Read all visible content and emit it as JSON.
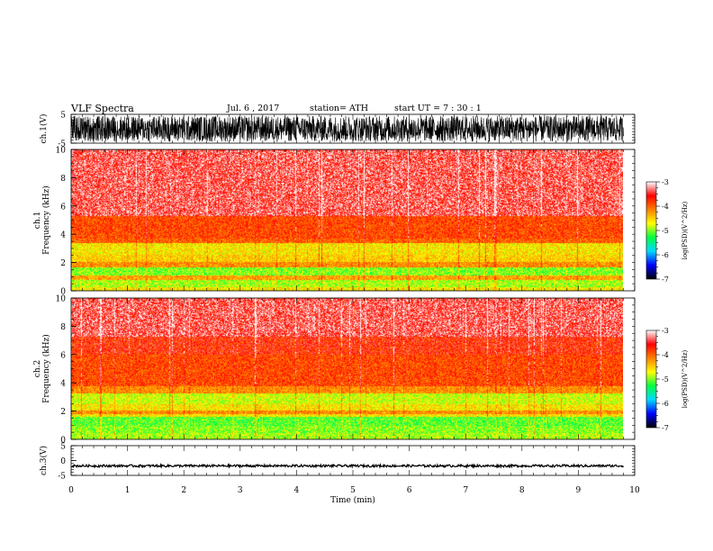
{
  "header": {
    "title": "VLF  Spectra",
    "date": "Jul.  6  , 2017",
    "station": "station= ATH",
    "start": "start  UT  =    7  : 30 : 1"
  },
  "chart_data": [
    {
      "type": "line",
      "panel": "ch1-waveform",
      "ylabel": "ch.1(V)",
      "xlim": [
        0,
        10
      ],
      "ylim": [
        -5,
        5
      ],
      "yticks": [
        5,
        -5
      ],
      "x_end_min": 9.8,
      "amplitude_range": [
        -4.5,
        4.5
      ]
    },
    {
      "type": "heatmap",
      "panel": "ch1-spectrogram",
      "ylabel": "ch.1\nFrequency  (kHz)",
      "xlim": [
        0,
        10
      ],
      "ylim": [
        0,
        10
      ],
      "yticks": [
        0,
        2,
        4,
        6,
        8,
        10
      ],
      "x_end_min": 9.8,
      "bands_khz": [
        {
          "from": 0,
          "to": 0.3,
          "level": -4.6
        },
        {
          "from": 0.3,
          "to": 0.8,
          "level": -4.9
        },
        {
          "from": 0.8,
          "to": 1.1,
          "level": -4.3
        },
        {
          "from": 1.1,
          "to": 1.7,
          "level": -5.0
        },
        {
          "from": 1.7,
          "to": 2.1,
          "level": -4.2
        },
        {
          "from": 2.1,
          "to": 2.6,
          "level": -4.5
        },
        {
          "from": 2.6,
          "to": 3.4,
          "level": -4.6
        },
        {
          "from": 3.4,
          "to": 3.7,
          "level": -4.0
        },
        {
          "from": 3.7,
          "to": 5.3,
          "level": -3.9
        },
        {
          "from": 5.3,
          "to": 10,
          "level": -3.4
        }
      ],
      "colorbar": {
        "label": "log(PSD)(V^2/Hz)",
        "range": [
          -7,
          -3
        ],
        "ticks": [
          -3,
          -4,
          -5,
          -6,
          -7
        ]
      }
    },
    {
      "type": "heatmap",
      "panel": "ch2-spectrogram",
      "ylabel": "ch.2\nFrequency  (kHz)",
      "xlim": [
        0,
        10
      ],
      "ylim": [
        0,
        10
      ],
      "yticks": [
        0,
        2,
        4,
        6,
        8,
        10
      ],
      "x_end_min": 9.8,
      "bands_khz": [
        {
          "from": 0,
          "to": 0.5,
          "level": -4.9
        },
        {
          "from": 0.5,
          "to": 1.0,
          "level": -5.0
        },
        {
          "from": 1.0,
          "to": 1.6,
          "level": -5.1
        },
        {
          "from": 1.6,
          "to": 1.8,
          "level": -4.6
        },
        {
          "from": 1.8,
          "to": 2.1,
          "level": -4.2
        },
        {
          "from": 2.1,
          "to": 2.5,
          "level": -4.6
        },
        {
          "from": 2.5,
          "to": 3.3,
          "level": -4.8
        },
        {
          "from": 3.3,
          "to": 3.8,
          "level": -4.2
        },
        {
          "from": 3.8,
          "to": 6.0,
          "level": -3.9
        },
        {
          "from": 6.0,
          "to": 7.3,
          "level": -3.7
        },
        {
          "from": 7.3,
          "to": 10,
          "level": -3.4
        }
      ],
      "colorbar": {
        "label": "log(PSD)(V^2/Hz)",
        "range": [
          -7,
          -3
        ],
        "ticks": [
          -3,
          -4,
          -5,
          -6,
          -7
        ]
      }
    },
    {
      "type": "line",
      "panel": "ch3-waveform",
      "ylabel": "ch.3(V)",
      "xlim": [
        0,
        10
      ],
      "ylim": [
        -5,
        5
      ],
      "yticks": [
        5,
        0,
        -5
      ],
      "x_end_min": 9.8,
      "amplitude_range": [
        -2.2,
        -1.4
      ]
    }
  ],
  "xaxis": {
    "label": "Time  (min)",
    "ticks": [
      "0",
      "1",
      "2",
      "3",
      "4",
      "5",
      "6",
      "7",
      "8",
      "9",
      "10"
    ]
  },
  "colorbar": {
    "tick_labels": [
      "-3",
      "-4",
      "-5",
      "-6",
      "-7"
    ],
    "stops": [
      "#000000",
      "#0000ff",
      "#00d8ff",
      "#00ff40",
      "#ffff00",
      "#ff8000",
      "#ff0000",
      "#ffffff"
    ]
  }
}
